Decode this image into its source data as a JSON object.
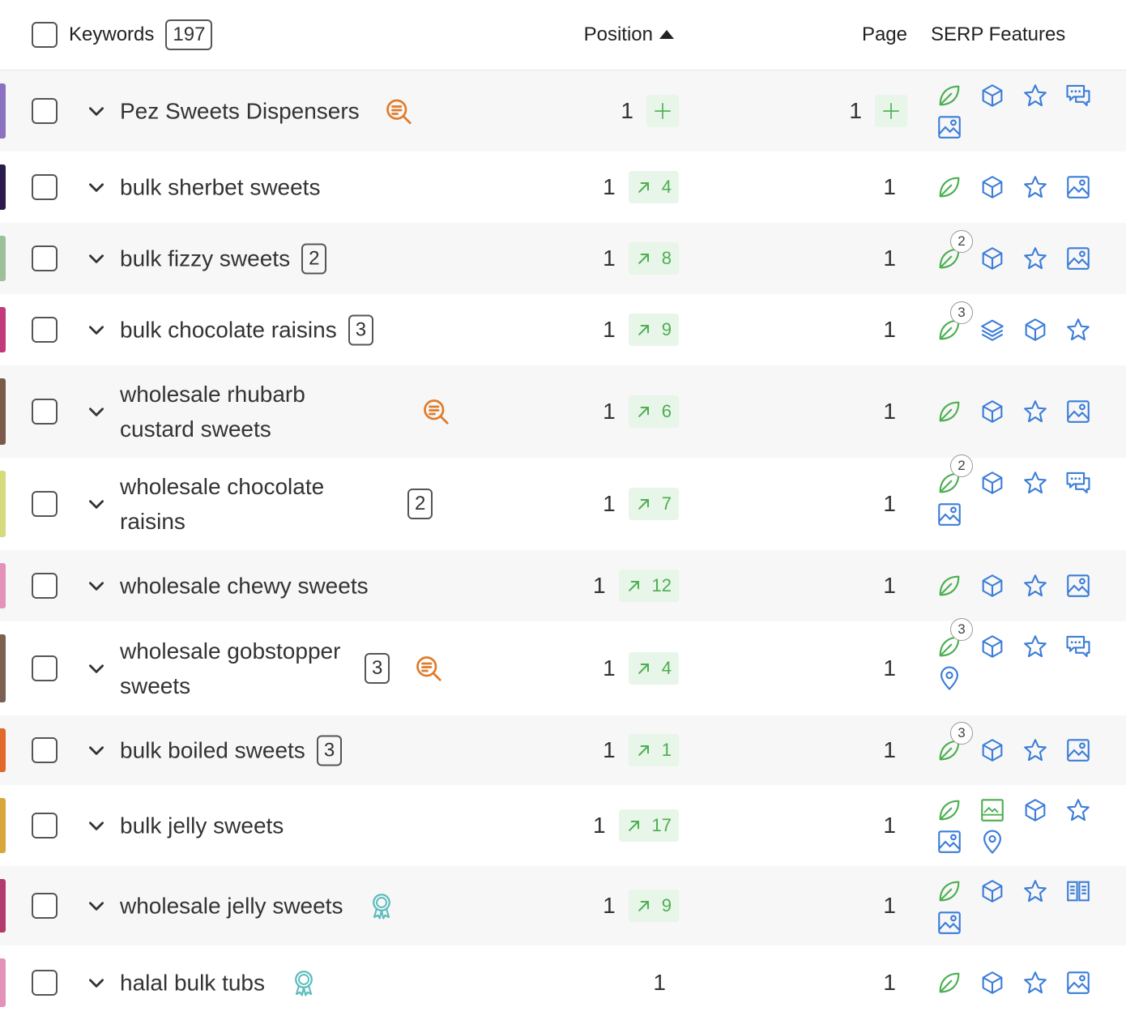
{
  "header": {
    "keywords": "Keywords",
    "keyword_count": "197",
    "position": "Position",
    "page": "Page",
    "serp_features": "SERP Features"
  },
  "rows": [
    {
      "keyword": "Pez Sweets Dispensers",
      "position": 1,
      "page": 1,
      "color": "#8a72c0"
    },
    {
      "keyword": "bulk sherbet sweets",
      "position": 1,
      "change": 4,
      "page": 1,
      "color": "#2b1b4d"
    },
    {
      "keyword": "bulk fizzy sweets",
      "badge": 2,
      "position": 1,
      "change": 8,
      "page": 1,
      "serp_count": 2,
      "color": "#9cc09a"
    },
    {
      "keyword": "bulk chocolate raisins",
      "badge": 3,
      "position": 1,
      "change": 9,
      "page": 1,
      "serp_count": 3,
      "color": "#c23a7c"
    },
    {
      "keyword": "wholesale rhubarb custard sweets",
      "position": 1,
      "change": 6,
      "page": 1,
      "color": "#7b5a4a"
    },
    {
      "keyword": "wholesale chocolate raisins",
      "badge": 2,
      "position": 1,
      "change": 7,
      "page": 1,
      "serp_count": 2,
      "color": "#d6d97c"
    },
    {
      "keyword": "wholesale chewy sweets",
      "position": 1,
      "change": 12,
      "page": 1,
      "color": "#e592b8"
    },
    {
      "keyword": "wholesale gobstopper sweets",
      "badge": 3,
      "position": 1,
      "change": 4,
      "page": 1,
      "serp_count": 3,
      "color": "#7a6152"
    },
    {
      "keyword": "bulk boiled sweets",
      "badge": 3,
      "position": 1,
      "change": 1,
      "page": 1,
      "serp_count": 3,
      "color": "#e2682b"
    },
    {
      "keyword": "bulk jelly sweets",
      "position": 1,
      "change": 17,
      "page": 1,
      "color": "#d9a63c"
    },
    {
      "keyword": "wholesale jelly sweets",
      "position": 1,
      "change": 9,
      "page": 1,
      "color": "#b23b6c"
    },
    {
      "keyword": "halal bulk tubs",
      "position": 1,
      "page": 1,
      "color": "#e592b8"
    }
  ]
}
